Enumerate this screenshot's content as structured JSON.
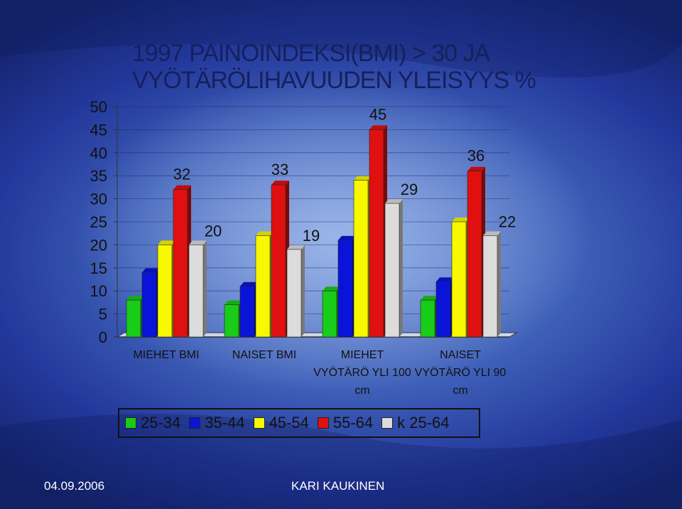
{
  "slide": {
    "title_line1": "1997 PAINOINDEKSI(BMI) > 30 JA",
    "title_line2": "VYÖTÄRÖLIHAVUUDEN YLEISYYS %",
    "date": "04.09.2006",
    "author": "KARI KAUKINEN"
  },
  "colors": {
    "25-34": "#19cc19",
    "35-44": "#0a14d8",
    "45-54": "#f8f800",
    "55-64": "#e01010",
    "k 25-64": "#dcdcdc"
  },
  "chart_data": {
    "type": "bar",
    "style": "3d-clustered",
    "title": "1997 PAINOINDEKSI(BMI) > 30 JA VYÖTÄRÖLIHAVUUDEN YLEISYYS %",
    "categories": [
      [
        "MIEHET BMI"
      ],
      [
        "NAISET BMI"
      ],
      [
        "MIEHET",
        "VYÖTÄRÖ YLI 100",
        "cm"
      ],
      [
        "NAISET",
        "VYÖTÄRÖ YLI 90",
        "cm"
      ]
    ],
    "series": [
      {
        "name": "25-34",
        "values": [
          8,
          7,
          10,
          8
        ]
      },
      {
        "name": "35-44",
        "values": [
          14,
          11,
          21,
          12
        ]
      },
      {
        "name": "45-54",
        "values": [
          20,
          22,
          34,
          25
        ]
      },
      {
        "name": "55-64",
        "values": [
          32,
          33,
          45,
          36
        ]
      },
      {
        "name": "k 25-64",
        "values": [
          20,
          19,
          29,
          22
        ]
      }
    ],
    "data_labels_series": "55-64 and k 25-64",
    "yticks": [
      0,
      5,
      10,
      15,
      20,
      25,
      30,
      35,
      40,
      45,
      50
    ],
    "ylim": [
      0,
      50
    ],
    "legend_position": "bottom",
    "grid": true
  }
}
